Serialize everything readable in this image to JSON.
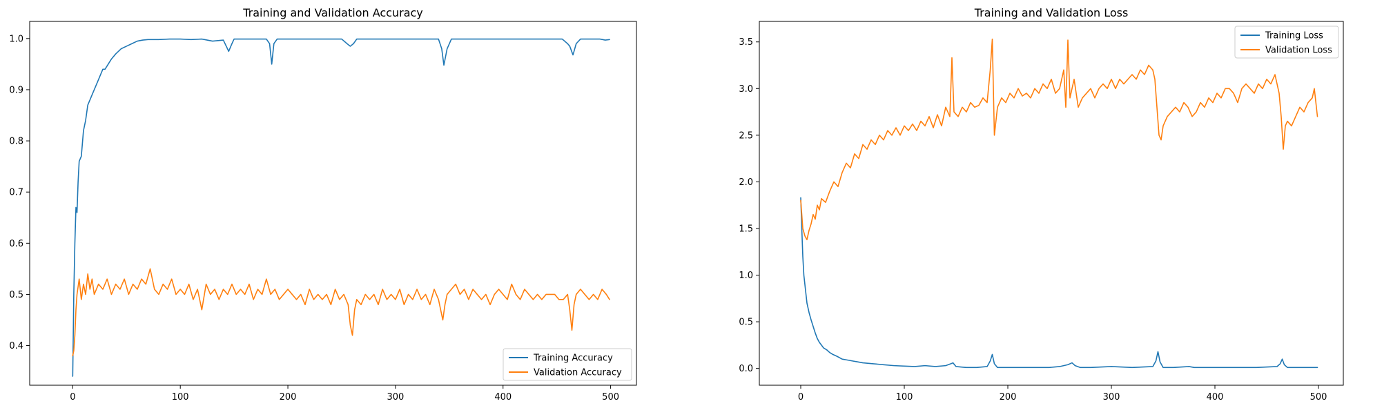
{
  "chart_data": [
    {
      "type": "line",
      "title": "Training and Validation Accuracy",
      "xlabel": "",
      "ylabel": "",
      "xlim": [
        -40,
        524
      ],
      "ylim": [
        0.3225,
        1.0335
      ],
      "xticks": [
        0,
        100,
        200,
        300,
        400,
        500
      ],
      "yticks": [
        0.4,
        0.5,
        0.6,
        0.7,
        0.8,
        0.9,
        1.0
      ],
      "ytick_labels": [
        "0.4",
        "0.5",
        "0.6",
        "0.7",
        "0.8",
        "0.9",
        "1.0"
      ],
      "legend_position": "bottom-right",
      "grid": false,
      "series": [
        {
          "name": "Training Accuracy",
          "color": "#1f77b4",
          "x": [
            0,
            1,
            2,
            3,
            4,
            5,
            6,
            8,
            10,
            12,
            14,
            16,
            18,
            20,
            22,
            24,
            26,
            28,
            30,
            33,
            36,
            40,
            45,
            50,
            55,
            60,
            65,
            70,
            80,
            90,
            100,
            110,
            120,
            130,
            140,
            145,
            148,
            150,
            160,
            170,
            180,
            183,
            185,
            187,
            190,
            200,
            210,
            220,
            230,
            240,
            250,
            255,
            258,
            261,
            264,
            270,
            280,
            290,
            300,
            310,
            320,
            330,
            340,
            343,
            345,
            348,
            352,
            360,
            370,
            380,
            390,
            400,
            410,
            420,
            430,
            440,
            450,
            455,
            460,
            462,
            465,
            468,
            472,
            480,
            490,
            495,
            499
          ],
          "y": [
            0.34,
            0.5,
            0.6,
            0.67,
            0.66,
            0.72,
            0.76,
            0.77,
            0.82,
            0.84,
            0.87,
            0.88,
            0.89,
            0.9,
            0.91,
            0.92,
            0.93,
            0.94,
            0.94,
            0.95,
            0.96,
            0.97,
            0.98,
            0.985,
            0.99,
            0.995,
            0.997,
            0.998,
            0.998,
            0.999,
            0.999,
            0.998,
            0.999,
            0.995,
            0.997,
            0.975,
            0.99,
            0.999,
            0.999,
            0.999,
            0.999,
            0.99,
            0.95,
            0.99,
            0.999,
            0.999,
            0.999,
            0.999,
            0.999,
            0.999,
            0.999,
            0.99,
            0.985,
            0.99,
            0.999,
            0.999,
            0.999,
            0.999,
            0.999,
            0.999,
            0.999,
            0.999,
            0.999,
            0.98,
            0.948,
            0.98,
            0.999,
            0.999,
            0.999,
            0.999,
            0.999,
            0.999,
            0.999,
            0.999,
            0.999,
            0.999,
            0.999,
            0.999,
            0.99,
            0.985,
            0.968,
            0.99,
            0.999,
            0.999,
            0.999,
            0.997,
            0.998
          ]
        },
        {
          "name": "Validation Accuracy",
          "color": "#ff7f0e",
          "x": [
            0,
            1,
            2,
            3,
            4,
            6,
            8,
            10,
            12,
            14,
            16,
            18,
            20,
            24,
            28,
            32,
            36,
            40,
            44,
            48,
            52,
            56,
            60,
            64,
            68,
            72,
            76,
            80,
            84,
            88,
            92,
            96,
            100,
            104,
            108,
            112,
            116,
            120,
            124,
            128,
            132,
            136,
            140,
            144,
            148,
            152,
            156,
            160,
            164,
            168,
            172,
            176,
            180,
            184,
            188,
            192,
            196,
            200,
            204,
            208,
            212,
            216,
            220,
            224,
            228,
            232,
            236,
            240,
            244,
            248,
            252,
            256,
            258,
            260,
            262,
            264,
            268,
            272,
            276,
            280,
            284,
            288,
            292,
            296,
            300,
            304,
            308,
            312,
            316,
            320,
            324,
            328,
            332,
            336,
            340,
            342,
            344,
            346,
            348,
            352,
            356,
            360,
            364,
            368,
            372,
            376,
            380,
            384,
            388,
            392,
            396,
            400,
            404,
            408,
            412,
            416,
            420,
            424,
            428,
            432,
            436,
            440,
            444,
            448,
            452,
            456,
            460,
            462,
            464,
            466,
            468,
            472,
            476,
            480,
            484,
            488,
            492,
            496,
            499
          ],
          "y": [
            0.38,
            0.39,
            0.42,
            0.47,
            0.5,
            0.53,
            0.49,
            0.52,
            0.5,
            0.54,
            0.51,
            0.53,
            0.5,
            0.52,
            0.51,
            0.53,
            0.5,
            0.52,
            0.51,
            0.53,
            0.5,
            0.52,
            0.51,
            0.53,
            0.52,
            0.55,
            0.51,
            0.5,
            0.52,
            0.51,
            0.53,
            0.5,
            0.51,
            0.5,
            0.52,
            0.49,
            0.51,
            0.47,
            0.52,
            0.5,
            0.51,
            0.49,
            0.51,
            0.5,
            0.52,
            0.5,
            0.51,
            0.5,
            0.52,
            0.49,
            0.51,
            0.5,
            0.53,
            0.5,
            0.51,
            0.49,
            0.5,
            0.51,
            0.5,
            0.49,
            0.5,
            0.48,
            0.51,
            0.49,
            0.5,
            0.49,
            0.5,
            0.48,
            0.51,
            0.49,
            0.5,
            0.48,
            0.44,
            0.42,
            0.47,
            0.49,
            0.48,
            0.5,
            0.49,
            0.5,
            0.48,
            0.51,
            0.49,
            0.5,
            0.49,
            0.51,
            0.48,
            0.5,
            0.49,
            0.51,
            0.49,
            0.5,
            0.48,
            0.51,
            0.49,
            0.47,
            0.45,
            0.48,
            0.5,
            0.51,
            0.52,
            0.5,
            0.51,
            0.49,
            0.51,
            0.5,
            0.49,
            0.5,
            0.48,
            0.5,
            0.51,
            0.5,
            0.49,
            0.52,
            0.5,
            0.49,
            0.51,
            0.5,
            0.49,
            0.5,
            0.49,
            0.5,
            0.5,
            0.5,
            0.49,
            0.49,
            0.5,
            0.47,
            0.43,
            0.48,
            0.5,
            0.51,
            0.5,
            0.49,
            0.5,
            0.49,
            0.51,
            0.5,
            0.49
          ]
        }
      ]
    },
    {
      "type": "line",
      "title": "Training and Validation Loss",
      "xlabel": "",
      "ylabel": "",
      "xlim": [
        -40,
        524
      ],
      "ylim": [
        -0.18,
        3.72
      ],
      "xticks": [
        0,
        100,
        200,
        300,
        400,
        500
      ],
      "yticks": [
        0.0,
        0.5,
        1.0,
        1.5,
        2.0,
        2.5,
        3.0,
        3.5
      ],
      "ytick_labels": [
        "0.0",
        "0.5",
        "1.0",
        "1.5",
        "2.0",
        "2.5",
        "3.0",
        "3.5"
      ],
      "legend_position": "top-right",
      "grid": false,
      "series": [
        {
          "name": "Training Loss",
          "color": "#1f77b4",
          "x": [
            0,
            1,
            2,
            3,
            4,
            5,
            6,
            8,
            10,
            12,
            14,
            16,
            18,
            20,
            22,
            25,
            28,
            31,
            35,
            40,
            45,
            50,
            55,
            60,
            70,
            80,
            90,
            100,
            110,
            120,
            130,
            140,
            145,
            147,
            150,
            160,
            170,
            180,
            183,
            185,
            187,
            190,
            200,
            220,
            240,
            250,
            258,
            262,
            265,
            270,
            280,
            300,
            320,
            340,
            343,
            345,
            347,
            350,
            360,
            375,
            380,
            400,
            420,
            440,
            460,
            463,
            465,
            467,
            470,
            480,
            490,
            499
          ],
          "y": [
            1.83,
            1.5,
            1.2,
            1.0,
            0.9,
            0.8,
            0.7,
            0.6,
            0.52,
            0.45,
            0.38,
            0.32,
            0.28,
            0.25,
            0.22,
            0.2,
            0.17,
            0.15,
            0.13,
            0.1,
            0.09,
            0.08,
            0.07,
            0.06,
            0.05,
            0.04,
            0.03,
            0.025,
            0.02,
            0.03,
            0.02,
            0.03,
            0.05,
            0.06,
            0.02,
            0.01,
            0.01,
            0.02,
            0.08,
            0.15,
            0.05,
            0.01,
            0.01,
            0.01,
            0.01,
            0.02,
            0.04,
            0.06,
            0.03,
            0.01,
            0.01,
            0.02,
            0.01,
            0.02,
            0.08,
            0.18,
            0.07,
            0.01,
            0.01,
            0.02,
            0.01,
            0.01,
            0.01,
            0.01,
            0.02,
            0.05,
            0.1,
            0.04,
            0.01,
            0.01,
            0.01,
            0.01
          ]
        },
        {
          "name": "Validation Loss",
          "color": "#ff7f0e",
          "x": [
            0,
            2,
            4,
            6,
            8,
            10,
            12,
            14,
            16,
            18,
            20,
            24,
            28,
            32,
            36,
            40,
            44,
            48,
            52,
            56,
            60,
            64,
            68,
            72,
            76,
            80,
            84,
            88,
            92,
            96,
            100,
            104,
            108,
            112,
            116,
            120,
            124,
            128,
            132,
            136,
            140,
            144,
            146,
            148,
            152,
            156,
            160,
            164,
            168,
            172,
            176,
            180,
            183,
            185,
            187,
            190,
            194,
            198,
            202,
            206,
            210,
            214,
            218,
            222,
            226,
            230,
            234,
            238,
            242,
            246,
            250,
            254,
            256,
            258,
            260,
            264,
            268,
            272,
            276,
            280,
            284,
            288,
            292,
            296,
            300,
            304,
            308,
            312,
            316,
            320,
            324,
            328,
            332,
            336,
            340,
            342,
            344,
            346,
            348,
            350,
            354,
            358,
            362,
            366,
            370,
            374,
            378,
            382,
            386,
            390,
            394,
            398,
            402,
            406,
            410,
            414,
            418,
            422,
            426,
            430,
            434,
            438,
            442,
            446,
            450,
            454,
            458,
            462,
            464,
            466,
            468,
            470,
            474,
            478,
            482,
            486,
            490,
            494,
            496,
            499
          ],
          "y": [
            1.8,
            1.5,
            1.42,
            1.38,
            1.48,
            1.55,
            1.65,
            1.6,
            1.75,
            1.7,
            1.82,
            1.78,
            1.9,
            2.0,
            1.95,
            2.1,
            2.2,
            2.15,
            2.3,
            2.25,
            2.4,
            2.35,
            2.45,
            2.4,
            2.5,
            2.45,
            2.55,
            2.5,
            2.58,
            2.5,
            2.6,
            2.55,
            2.62,
            2.55,
            2.65,
            2.6,
            2.7,
            2.58,
            2.72,
            2.6,
            2.8,
            2.7,
            3.33,
            2.75,
            2.7,
            2.8,
            2.75,
            2.85,
            2.8,
            2.82,
            2.9,
            2.85,
            3.2,
            3.53,
            2.5,
            2.8,
            2.9,
            2.85,
            2.95,
            2.9,
            3.0,
            2.92,
            2.95,
            2.9,
            3.0,
            2.95,
            3.05,
            3.0,
            3.1,
            2.95,
            3.0,
            3.2,
            2.8,
            3.52,
            2.9,
            3.1,
            2.8,
            2.9,
            2.95,
            3.0,
            2.9,
            3.0,
            3.05,
            3.0,
            3.1,
            3.0,
            3.1,
            3.05,
            3.1,
            3.15,
            3.1,
            3.2,
            3.15,
            3.25,
            3.2,
            3.1,
            2.8,
            2.5,
            2.45,
            2.6,
            2.7,
            2.75,
            2.8,
            2.75,
            2.85,
            2.8,
            2.7,
            2.75,
            2.85,
            2.8,
            2.9,
            2.85,
            2.95,
            2.9,
            3.0,
            3.0,
            2.95,
            2.85,
            3.0,
            3.05,
            3.0,
            2.95,
            3.05,
            3.0,
            3.1,
            3.05,
            3.15,
            2.95,
            2.7,
            2.35,
            2.6,
            2.65,
            2.6,
            2.7,
            2.8,
            2.75,
            2.85,
            2.9,
            3.0,
            2.7
          ]
        }
      ]
    }
  ]
}
